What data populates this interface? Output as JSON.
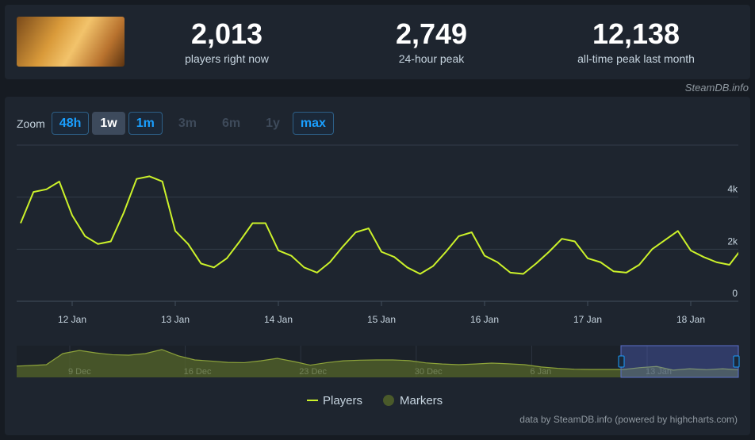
{
  "header": {
    "stats": [
      {
        "value": "2,013",
        "label": "players right now"
      },
      {
        "value": "2,749",
        "label": "24-hour peak"
      },
      {
        "value": "12,138",
        "label": "all-time peak last month"
      }
    ],
    "source": "SteamDB.info"
  },
  "zoom": {
    "label": "Zoom",
    "buttons": [
      {
        "text": "48h",
        "state": "enabled"
      },
      {
        "text": "1w",
        "state": "selected"
      },
      {
        "text": "1m",
        "state": "enabled"
      },
      {
        "text": "3m",
        "state": "disabled"
      },
      {
        "text": "6m",
        "state": "disabled"
      },
      {
        "text": "1y",
        "state": "disabled"
      },
      {
        "text": "max",
        "state": "enabled"
      }
    ]
  },
  "chart_data": [
    {
      "type": "line",
      "categories": [
        null,
        null,
        null,
        null,
        "12 Jan",
        null,
        null,
        null,
        null,
        null,
        null,
        null,
        "13 Jan",
        null,
        null,
        null,
        null,
        null,
        null,
        null,
        "14 Jan",
        null,
        null,
        null,
        null,
        null,
        null,
        null,
        "15 Jan",
        null,
        null,
        null,
        null,
        null,
        null,
        null,
        "16 Jan",
        null,
        null,
        null,
        null,
        null,
        null,
        null,
        "17 Jan",
        null,
        null,
        null,
        null,
        null,
        null,
        null,
        "18 Jan",
        null,
        null,
        null,
        null
      ],
      "series": [
        {
          "name": "Players",
          "color": "#ccf22a",
          "values": [
            3000,
            4200,
            4300,
            4600,
            3300,
            2500,
            2200,
            2300,
            3400,
            4700,
            4800,
            4600,
            2700,
            2200,
            1450,
            1300,
            1650,
            2300,
            3000,
            3000,
            1950,
            1750,
            1300,
            1100,
            1500,
            2100,
            2650,
            2800,
            1900,
            1700,
            1300,
            1050,
            1350,
            1900,
            2500,
            2650,
            1750,
            1500,
            1100,
            1050,
            1450,
            1900,
            2400,
            2300,
            1650,
            1500,
            1150,
            1100,
            1400,
            2000,
            2350,
            2700,
            1950,
            1700,
            1500,
            1400,
            2050
          ]
        }
      ],
      "markers": {
        "name": "Markers",
        "color": "#4a5a2a"
      },
      "ylim": [
        0,
        6000
      ],
      "yticks": [
        0,
        {
          "value": 2000,
          "label": "2k"
        },
        {
          "value": 4000,
          "label": "4k"
        }
      ],
      "grid": true,
      "legend": "bottom",
      "credit": "data by SteamDB.info (powered by highcharts.com)"
    },
    {
      "type": "area",
      "categories": [
        null,
        null,
        null,
        null,
        "9 Dec",
        null,
        null,
        null,
        null,
        null,
        null,
        "16 Dec",
        null,
        null,
        null,
        null,
        null,
        null,
        "23 Dec",
        null,
        null,
        null,
        null,
        null,
        null,
        "30 Dec",
        null,
        null,
        null,
        null,
        null,
        null,
        "6 Jan",
        null,
        null,
        null,
        null,
        null,
        null,
        "13 Jan",
        null,
        null,
        null,
        null,
        null
      ],
      "values": [
        4900,
        5200,
        5600,
        10500,
        11900,
        10800,
        10000,
        9800,
        10500,
        12300,
        9500,
        7700,
        7200,
        6600,
        6500,
        7300,
        8400,
        7000,
        5400,
        6500,
        7300,
        7600,
        7700,
        7700,
        7400,
        6400,
        5900,
        5600,
        5900,
        6300,
        6000,
        5600,
        4600,
        4000,
        3600,
        3500,
        3500,
        3500,
        4300,
        4800,
        3200,
        3800,
        3400,
        3800,
        3300
      ],
      "color": "#55652a",
      "ylim": [
        0,
        14000
      ]
    }
  ]
}
